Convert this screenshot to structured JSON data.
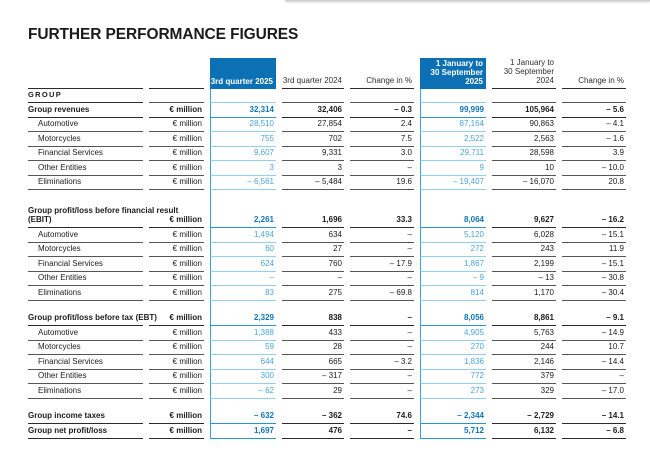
{
  "title": "FURTHER PERFORMANCE FIGURES",
  "colors": {
    "header_blue": "#0c71b4",
    "value_blue_bold": "#0f76ba",
    "value_blue": "#4aa5dc",
    "rule_blue_bold": "#2596d4",
    "rule_blue_light": "#93cfef",
    "vline_blue": "#3aa3dc",
    "rule_dark_bold": "#2b2b2b",
    "rule_dark": "#565656",
    "text_dark": "#1c1c1c"
  },
  "table": {
    "group_label": "GROUP",
    "unit_label": "€ million",
    "col_headers": [
      {
        "label": "3rd quarter 2025",
        "highlight": true
      },
      {
        "label": "3rd quarter 2024",
        "highlight": false
      },
      {
        "label": "Change in %",
        "highlight": false
      },
      {
        "label": "1 January to\n30 September 2025",
        "highlight": true
      },
      {
        "label": "1 January to\n30 September 2024",
        "highlight": false
      },
      {
        "label": "Change in %",
        "highlight": false
      }
    ],
    "sections": [
      {
        "rows": [
          {
            "label": "Group revenues",
            "bold": true,
            "values": [
              "32,314",
              "32,406",
              "– 0.3",
              "99,999",
              "105,964",
              "– 5.6"
            ]
          },
          {
            "label": "Automotive",
            "indent": true,
            "values": [
              "28,510",
              "27,854",
              "2.4",
              "87,164",
              "90,863",
              "– 4.1"
            ]
          },
          {
            "label": "Motorcycles",
            "indent": true,
            "values": [
              "755",
              "702",
              "7.5",
              "2,522",
              "2,563",
              "– 1.6"
            ]
          },
          {
            "label": "Financial Services",
            "indent": true,
            "values": [
              "9,607",
              "9,331",
              "3.0",
              "29,711",
              "28,598",
              "3.9"
            ]
          },
          {
            "label": "Other Entities",
            "indent": true,
            "values": [
              "3",
              "3",
              "–",
              "9",
              "10",
              "– 10.0"
            ]
          },
          {
            "label": "Eliminations",
            "indent": true,
            "values": [
              "– 6,561",
              "– 5,484",
              "19.6",
              "– 19,407",
              "– 16,070",
              "20.8"
            ]
          }
        ]
      },
      {
        "rows": [
          {
            "label": "Group profit/loss before financial result\n(EBIT)",
            "bold": true,
            "tall": true,
            "values": [
              "2,261",
              "1,696",
              "33.3",
              "8,064",
              "9,627",
              "– 16.2"
            ]
          },
          {
            "label": "Automotive",
            "indent": true,
            "values": [
              "1,494",
              "634",
              "–",
              "5,120",
              "6,028",
              "– 15.1"
            ]
          },
          {
            "label": "Motorcycles",
            "indent": true,
            "values": [
              "60",
              "27",
              "–",
              "272",
              "243",
              "11.9"
            ]
          },
          {
            "label": "Financial Services",
            "indent": true,
            "values": [
              "624",
              "760",
              "– 17.9",
              "1,867",
              "2,199",
              "– 15.1"
            ]
          },
          {
            "label": "Other Entities",
            "indent": true,
            "values": [
              "–",
              "–",
              "–",
              "– 9",
              "– 13",
              "– 30.8"
            ]
          },
          {
            "label": "Eliminations",
            "indent": true,
            "values": [
              "83",
              "275",
              "– 69.8",
              "814",
              "1,170",
              "– 30.4"
            ]
          }
        ]
      },
      {
        "rows": [
          {
            "label": "Group profit/loss before tax (EBT)",
            "bold": true,
            "values": [
              "2,329",
              "838",
              "–",
              "8,056",
              "8,861",
              "– 9.1"
            ]
          },
          {
            "label": "Automotive",
            "indent": true,
            "values": [
              "1,388",
              "433",
              "–",
              "4,905",
              "5,763",
              "– 14.9"
            ]
          },
          {
            "label": "Motorcycles",
            "indent": true,
            "values": [
              "59",
              "28",
              "–",
              "270",
              "244",
              "10.7"
            ]
          },
          {
            "label": "Financial Services",
            "indent": true,
            "values": [
              "644",
              "665",
              "– 3.2",
              "1,836",
              "2,146",
              "– 14.4"
            ]
          },
          {
            "label": "Other Entities",
            "indent": true,
            "values": [
              "300",
              "– 317",
              "–",
              "772",
              "379",
              "–"
            ]
          },
          {
            "label": "Eliminations",
            "indent": true,
            "values": [
              "– 62",
              "29",
              "–",
              "273",
              "329",
              "– 17.0"
            ]
          }
        ]
      },
      {
        "rows": [
          {
            "label": "Group income taxes",
            "bold": true,
            "values": [
              "– 632",
              "– 362",
              "74.6",
              "– 2,344",
              "– 2,729",
              "– 14.1"
            ]
          },
          {
            "label": "Group net profit/loss",
            "bold": true,
            "values": [
              "1,697",
              "476",
              "–",
              "5,712",
              "6,132",
              "– 6.8"
            ]
          }
        ]
      }
    ]
  }
}
